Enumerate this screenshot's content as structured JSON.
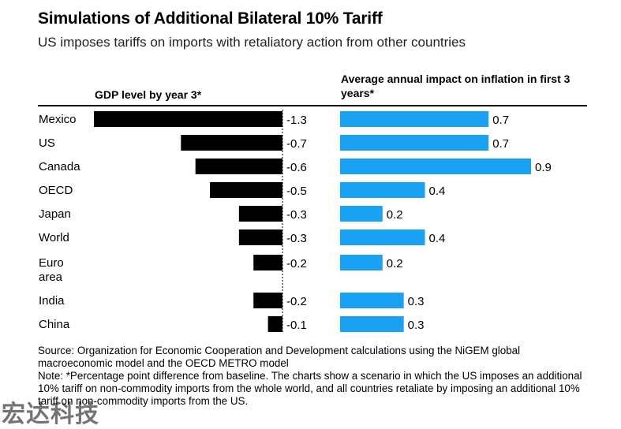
{
  "title": "Simulations of Additional Bilateral 10% Tariff",
  "subtitle": "US imposes tariffs on imports with retaliatory action from other countries",
  "source": "Source: Organization for Economic Cooperation and Development calculations using the NiGEM global macroeconomic model and the OECD METRO model",
  "note": "Note: *Percentage point difference from baseline. The charts show a scenario in which the US imposes an additional 10% tariff on non-commodity imports from the whole world, and all countries retaliate by imposing an additional 10% tariff on non-commodity imports from the US.",
  "watermark": "宏达科技",
  "colors": {
    "gdp_bar": "#000000",
    "inflation_bar": "#1aa1f2"
  },
  "chart_data": [
    {
      "type": "bar",
      "orientation": "horizontal",
      "title": "GDP level by year 3*",
      "categories": [
        "Mexico",
        "US",
        "Canada",
        "OECD",
        "Japan",
        "World",
        "Euro area",
        "India",
        "China"
      ],
      "values": [
        -1.3,
        -0.7,
        -0.6,
        -0.5,
        -0.3,
        -0.3,
        -0.2,
        -0.2,
        -0.1
      ],
      "labels": [
        "-1.3",
        "-0.7",
        "-0.6",
        "-0.5",
        "-0.3",
        "-0.3",
        "-0.2",
        "-0.2",
        "-0.1"
      ],
      "xlim": [
        -1.3,
        0
      ],
      "grid": false,
      "color": "#000000"
    },
    {
      "type": "bar",
      "orientation": "horizontal",
      "title": "Average annual impact on inflation in first 3 years*",
      "categories": [
        "Mexico",
        "US",
        "Canada",
        "OECD",
        "Japan",
        "World",
        "Euro area",
        "India",
        "China"
      ],
      "values": [
        0.7,
        0.7,
        0.9,
        0.4,
        0.2,
        0.4,
        0.2,
        0.3,
        0.3
      ],
      "labels": [
        "0.7",
        "0.7",
        "0.9",
        "0.4",
        "0.2",
        "0.4",
        "0.2",
        "0.3",
        "0.3"
      ],
      "xlim": [
        0,
        0.9
      ],
      "grid": false,
      "color": "#1aa1f2"
    }
  ]
}
